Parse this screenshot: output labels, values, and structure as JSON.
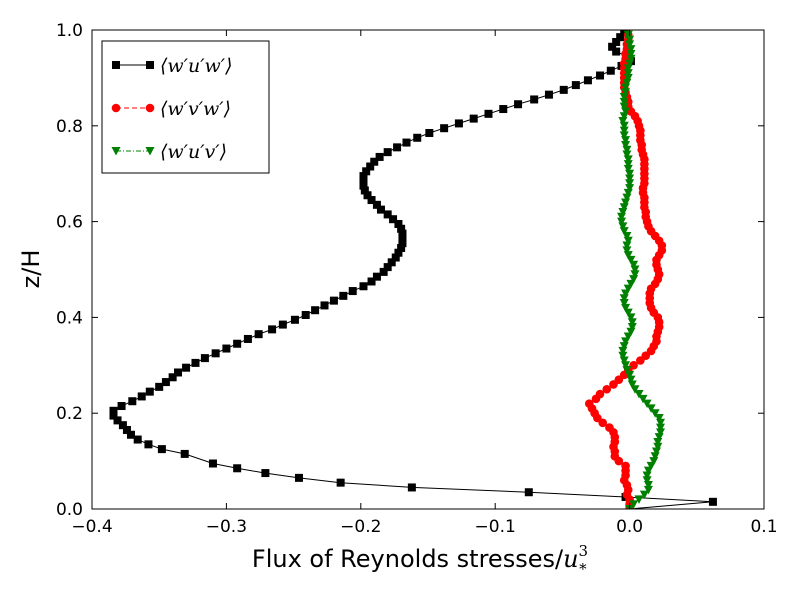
{
  "chart_data": {
    "type": "line",
    "title": "",
    "xlabel": "Flux of Reynolds stresses/",
    "xlabel_math": "u",
    "xlabel_sup": "3",
    "xlabel_sub": "*",
    "ylabel": "z/H",
    "xlim": [
      -0.4,
      0.1
    ],
    "ylim": [
      0.0,
      1.0
    ],
    "xticks": [
      -0.4,
      -0.3,
      -0.2,
      -0.1,
      0.0,
      0.1
    ],
    "xtick_labels": [
      "−0.4",
      "−0.3",
      "−0.2",
      "−0.1",
      "0.0",
      "0.1"
    ],
    "yticks": [
      0.0,
      0.2,
      0.4,
      0.6,
      0.8,
      1.0
    ],
    "ytick_labels": [
      "0.0",
      "0.2",
      "0.4",
      "0.6",
      "0.8",
      "1.0"
    ],
    "grid": false,
    "legend_position": "top-left",
    "series": [
      {
        "name": "⟨w′u′w′⟩",
        "color": "#000000",
        "marker": "square",
        "linestyle": "solid",
        "points": [
          [
            0.0,
            0.0
          ],
          [
            0.062,
            0.015
          ],
          [
            -0.003,
            0.025
          ],
          [
            -0.075,
            0.035
          ],
          [
            -0.162,
            0.045
          ],
          [
            -0.215,
            0.055
          ],
          [
            -0.246,
            0.065
          ],
          [
            -0.271,
            0.075
          ],
          [
            -0.292,
            0.085
          ],
          [
            -0.31,
            0.095
          ],
          [
            -0.331,
            0.115
          ],
          [
            -0.348,
            0.125
          ],
          [
            -0.358,
            0.135
          ],
          [
            -0.366,
            0.145
          ],
          [
            -0.371,
            0.155
          ],
          [
            -0.374,
            0.165
          ],
          [
            -0.377,
            0.175
          ],
          [
            -0.381,
            0.185
          ],
          [
            -0.384,
            0.195
          ],
          [
            -0.384,
            0.205
          ],
          [
            -0.378,
            0.215
          ],
          [
            -0.37,
            0.225
          ],
          [
            -0.363,
            0.235
          ],
          [
            -0.357,
            0.245
          ],
          [
            -0.35,
            0.255
          ],
          [
            -0.345,
            0.265
          ],
          [
            -0.34,
            0.275
          ],
          [
            -0.336,
            0.285
          ],
          [
            -0.33,
            0.295
          ],
          [
            -0.323,
            0.305
          ],
          [
            -0.316,
            0.315
          ],
          [
            -0.308,
            0.325
          ],
          [
            -0.3,
            0.335
          ],
          [
            -0.292,
            0.345
          ],
          [
            -0.284,
            0.355
          ],
          [
            -0.276,
            0.365
          ],
          [
            -0.266,
            0.375
          ],
          [
            -0.258,
            0.385
          ],
          [
            -0.249,
            0.395
          ],
          [
            -0.241,
            0.405
          ],
          [
            -0.234,
            0.415
          ],
          [
            -0.227,
            0.425
          ],
          [
            -0.22,
            0.435
          ],
          [
            -0.213,
            0.445
          ],
          [
            -0.206,
            0.455
          ],
          [
            -0.198,
            0.465
          ],
          [
            -0.192,
            0.475
          ],
          [
            -0.188,
            0.485
          ],
          [
            -0.183,
            0.495
          ],
          [
            -0.18,
            0.505
          ],
          [
            -0.177,
            0.515
          ],
          [
            -0.174,
            0.525
          ],
          [
            -0.172,
            0.535
          ],
          [
            -0.17,
            0.545
          ],
          [
            -0.169,
            0.555
          ],
          [
            -0.169,
            0.565
          ],
          [
            -0.169,
            0.575
          ],
          [
            -0.17,
            0.585
          ],
          [
            -0.172,
            0.595
          ],
          [
            -0.176,
            0.605
          ],
          [
            -0.18,
            0.615
          ],
          [
            -0.185,
            0.625
          ],
          [
            -0.188,
            0.635
          ],
          [
            -0.192,
            0.645
          ],
          [
            -0.195,
            0.655
          ],
          [
            -0.197,
            0.665
          ],
          [
            -0.198,
            0.675
          ],
          [
            -0.198,
            0.685
          ],
          [
            -0.198,
            0.695
          ],
          [
            -0.196,
            0.705
          ],
          [
            -0.193,
            0.715
          ],
          [
            -0.19,
            0.725
          ],
          [
            -0.186,
            0.735
          ],
          [
            -0.18,
            0.745
          ],
          [
            -0.173,
            0.755
          ],
          [
            -0.166,
            0.765
          ],
          [
            -0.158,
            0.775
          ],
          [
            -0.149,
            0.785
          ],
          [
            -0.138,
            0.795
          ],
          [
            -0.127,
            0.805
          ],
          [
            -0.116,
            0.815
          ],
          [
            -0.105,
            0.825
          ],
          [
            -0.094,
            0.835
          ],
          [
            -0.083,
            0.845
          ],
          [
            -0.071,
            0.855
          ],
          [
            -0.06,
            0.865
          ],
          [
            -0.049,
            0.875
          ],
          [
            -0.04,
            0.885
          ],
          [
            -0.031,
            0.895
          ],
          [
            -0.022,
            0.905
          ],
          [
            -0.014,
            0.915
          ],
          [
            -0.006,
            0.925
          ],
          [
            0.001,
            0.935
          ],
          [
            -0.002,
            0.945
          ],
          [
            -0.01,
            0.955
          ],
          [
            -0.013,
            0.965
          ],
          [
            -0.01,
            0.975
          ],
          [
            -0.007,
            0.985
          ],
          [
            -0.004,
            0.995
          ]
        ]
      },
      {
        "name": "⟨w′v′w′⟩",
        "color": "#ff0000",
        "marker": "circle",
        "linestyle": "dashed",
        "points": [
          [
            0.0,
            0.0
          ],
          [
            0.0,
            0.01
          ],
          [
            0.0,
            0.02
          ],
          [
            -0.002,
            0.03
          ],
          [
            -0.001,
            0.04
          ],
          [
            -0.002,
            0.05
          ],
          [
            -0.004,
            0.06
          ],
          [
            -0.003,
            0.07
          ],
          [
            -0.003,
            0.08
          ],
          [
            -0.003,
            0.09
          ],
          [
            -0.008,
            0.1
          ],
          [
            -0.011,
            0.11
          ],
          [
            -0.011,
            0.12
          ],
          [
            -0.012,
            0.13
          ],
          [
            -0.011,
            0.14
          ],
          [
            -0.011,
            0.15
          ],
          [
            -0.012,
            0.16
          ],
          [
            -0.015,
            0.17
          ],
          [
            -0.02,
            0.18
          ],
          [
            -0.024,
            0.19
          ],
          [
            -0.026,
            0.2
          ],
          [
            -0.028,
            0.21
          ],
          [
            -0.03,
            0.22
          ],
          [
            -0.025,
            0.23
          ],
          [
            -0.022,
            0.24
          ],
          [
            -0.017,
            0.25
          ],
          [
            -0.012,
            0.26
          ],
          [
            -0.008,
            0.27
          ],
          [
            -0.004,
            0.28
          ],
          [
            -0.001,
            0.29
          ],
          [
            0.003,
            0.3
          ],
          [
            0.008,
            0.31
          ],
          [
            0.012,
            0.32
          ],
          [
            0.016,
            0.33
          ],
          [
            0.018,
            0.34
          ],
          [
            0.02,
            0.35
          ],
          [
            0.02,
            0.36
          ],
          [
            0.021,
            0.37
          ],
          [
            0.022,
            0.38
          ],
          [
            0.022,
            0.39
          ],
          [
            0.021,
            0.4
          ],
          [
            0.018,
            0.41
          ],
          [
            0.016,
            0.42
          ],
          [
            0.015,
            0.43
          ],
          [
            0.015,
            0.44
          ],
          [
            0.015,
            0.45
          ],
          [
            0.016,
            0.46
          ],
          [
            0.019,
            0.47
          ],
          [
            0.021,
            0.48
          ],
          [
            0.022,
            0.49
          ],
          [
            0.021,
            0.5
          ],
          [
            0.02,
            0.51
          ],
          [
            0.02,
            0.52
          ],
          [
            0.022,
            0.53
          ],
          [
            0.024,
            0.54
          ],
          [
            0.024,
            0.55
          ],
          [
            0.022,
            0.56
          ],
          [
            0.019,
            0.57
          ],
          [
            0.016,
            0.58
          ],
          [
            0.014,
            0.59
          ],
          [
            0.013,
            0.6
          ],
          [
            0.012,
            0.61
          ],
          [
            0.012,
            0.62
          ],
          [
            0.011,
            0.63
          ],
          [
            0.011,
            0.64
          ],
          [
            0.011,
            0.65
          ],
          [
            0.01,
            0.66
          ],
          [
            0.01,
            0.67
          ],
          [
            0.011,
            0.68
          ],
          [
            0.011,
            0.69
          ],
          [
            0.011,
            0.7
          ],
          [
            0.011,
            0.71
          ],
          [
            0.011,
            0.72
          ],
          [
            0.011,
            0.73
          ],
          [
            0.01,
            0.74
          ],
          [
            0.009,
            0.75
          ],
          [
            0.009,
            0.76
          ],
          [
            0.008,
            0.77
          ],
          [
            0.008,
            0.78
          ],
          [
            0.008,
            0.79
          ],
          [
            0.007,
            0.8
          ],
          [
            0.006,
            0.81
          ],
          [
            0.004,
            0.82
          ],
          [
            0.001,
            0.83
          ],
          [
            -0.001,
            0.84
          ],
          [
            -0.001,
            0.85
          ],
          [
            -0.002,
            0.86
          ],
          [
            -0.003,
            0.87
          ],
          [
            -0.004,
            0.88
          ],
          [
            -0.004,
            0.89
          ],
          [
            -0.004,
            0.9
          ],
          [
            -0.004,
            0.91
          ],
          [
            -0.004,
            0.92
          ],
          [
            -0.004,
            0.93
          ],
          [
            -0.003,
            0.94
          ],
          [
            -0.003,
            0.95
          ],
          [
            -0.002,
            0.96
          ],
          [
            -0.002,
            0.97
          ],
          [
            -0.001,
            0.98
          ],
          [
            -0.001,
            0.99
          ]
        ]
      },
      {
        "name": "⟨w′u′v′⟩",
        "color": "#008000",
        "marker": "triangle-down",
        "linestyle": "dashdot",
        "points": [
          [
            0.0,
            0.0
          ],
          [
            0.003,
            0.01
          ],
          [
            0.007,
            0.02
          ],
          [
            0.011,
            0.03
          ],
          [
            0.014,
            0.04
          ],
          [
            0.014,
            0.05
          ],
          [
            0.013,
            0.06
          ],
          [
            0.013,
            0.07
          ],
          [
            0.014,
            0.08
          ],
          [
            0.016,
            0.09
          ],
          [
            0.018,
            0.1
          ],
          [
            0.019,
            0.11
          ],
          [
            0.02,
            0.12
          ],
          [
            0.021,
            0.13
          ],
          [
            0.021,
            0.14
          ],
          [
            0.022,
            0.15
          ],
          [
            0.023,
            0.16
          ],
          [
            0.023,
            0.17
          ],
          [
            0.023,
            0.18
          ],
          [
            0.022,
            0.19
          ],
          [
            0.019,
            0.2
          ],
          [
            0.016,
            0.21
          ],
          [
            0.013,
            0.22
          ],
          [
            0.01,
            0.23
          ],
          [
            0.007,
            0.24
          ],
          [
            0.004,
            0.25
          ],
          [
            0.002,
            0.26
          ],
          [
            0.001,
            0.27
          ],
          [
            0.0,
            0.28
          ],
          [
            -0.002,
            0.29
          ],
          [
            -0.003,
            0.3
          ],
          [
            -0.004,
            0.31
          ],
          [
            -0.005,
            0.32
          ],
          [
            -0.005,
            0.33
          ],
          [
            -0.004,
            0.34
          ],
          [
            -0.003,
            0.35
          ],
          [
            -0.001,
            0.36
          ],
          [
            0.001,
            0.37
          ],
          [
            0.002,
            0.38
          ],
          [
            0.002,
            0.39
          ],
          [
            0.001,
            0.4
          ],
          [
            -0.001,
            0.41
          ],
          [
            -0.003,
            0.42
          ],
          [
            -0.004,
            0.43
          ],
          [
            -0.004,
            0.44
          ],
          [
            -0.003,
            0.45
          ],
          [
            -0.001,
            0.46
          ],
          [
            0.001,
            0.47
          ],
          [
            0.003,
            0.48
          ],
          [
            0.004,
            0.49
          ],
          [
            0.004,
            0.5
          ],
          [
            0.003,
            0.51
          ],
          [
            0.001,
            0.52
          ],
          [
            -0.001,
            0.53
          ],
          [
            -0.002,
            0.54
          ],
          [
            -0.002,
            0.55
          ],
          [
            -0.001,
            0.56
          ],
          [
            -0.002,
            0.57
          ],
          [
            -0.004,
            0.58
          ],
          [
            -0.005,
            0.59
          ],
          [
            -0.006,
            0.6
          ],
          [
            -0.006,
            0.61
          ],
          [
            -0.005,
            0.62
          ],
          [
            -0.004,
            0.63
          ],
          [
            -0.003,
            0.64
          ],
          [
            -0.002,
            0.65
          ],
          [
            -0.001,
            0.66
          ],
          [
            0.0,
            0.67
          ],
          [
            0.0,
            0.68
          ],
          [
            0.0,
            0.69
          ],
          [
            0.0,
            0.7
          ],
          [
            -0.001,
            0.71
          ],
          [
            -0.001,
            0.72
          ],
          [
            -0.001,
            0.73
          ],
          [
            -0.002,
            0.74
          ],
          [
            -0.002,
            0.75
          ],
          [
            -0.003,
            0.76
          ],
          [
            -0.003,
            0.77
          ],
          [
            -0.004,
            0.78
          ],
          [
            -0.004,
            0.79
          ],
          [
            -0.004,
            0.8
          ],
          [
            -0.005,
            0.81
          ],
          [
            -0.004,
            0.82
          ],
          [
            -0.003,
            0.83
          ],
          [
            -0.004,
            0.84
          ],
          [
            -0.004,
            0.85
          ],
          [
            -0.004,
            0.86
          ],
          [
            -0.003,
            0.87
          ],
          [
            -0.003,
            0.88
          ],
          [
            -0.002,
            0.89
          ],
          [
            -0.001,
            0.9
          ],
          [
            -0.001,
            0.91
          ],
          [
            -0.001,
            0.92
          ],
          [
            0.0,
            0.93
          ],
          [
            0.001,
            0.94
          ],
          [
            0.001,
            0.95
          ],
          [
            0.001,
            0.96
          ],
          [
            0.0,
            0.97
          ],
          [
            0.0,
            0.98
          ],
          [
            -0.001,
            0.99
          ]
        ]
      }
    ]
  }
}
